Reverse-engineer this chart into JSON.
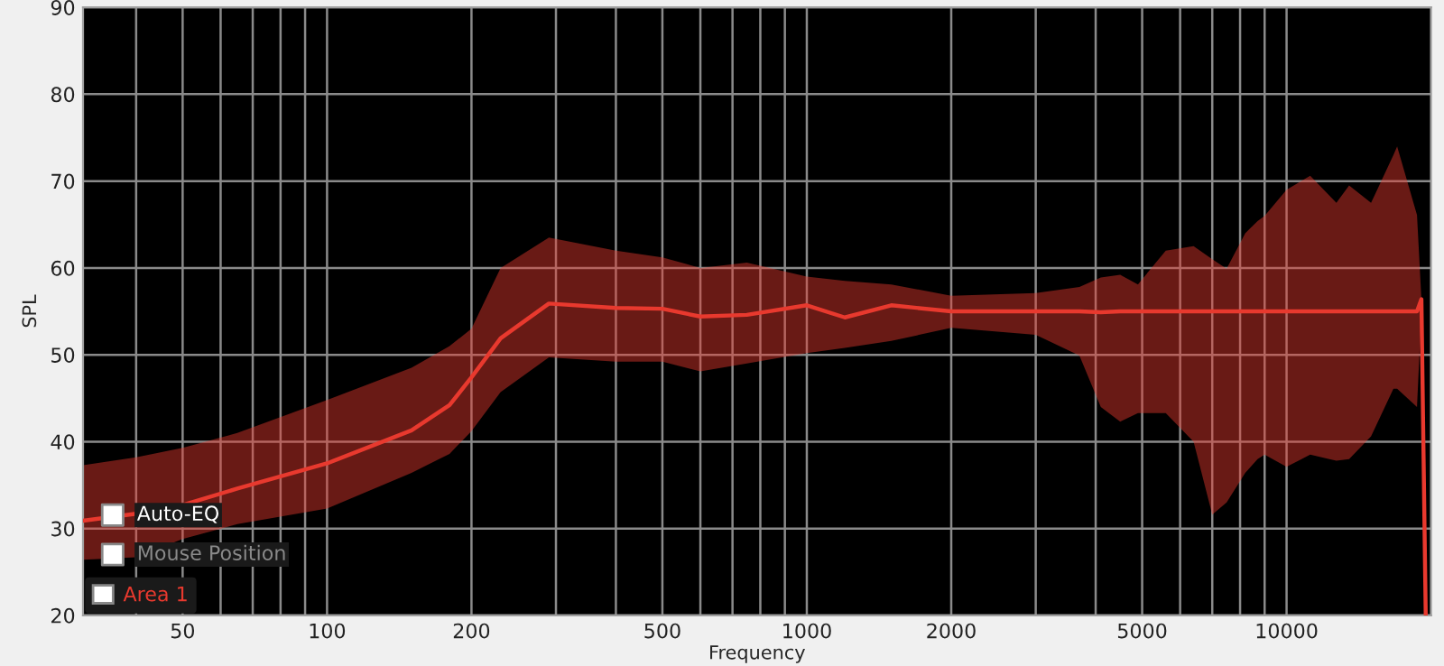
{
  "chart_data": {
    "type": "line",
    "xlabel": "Frequency",
    "ylabel": "SPL",
    "log": "x",
    "xlim": [
      31,
      20000
    ],
    "ylim": [
      20,
      90
    ],
    "xticks": [
      {
        "value": 40,
        "label": null
      },
      50,
      {
        "value": 60,
        "label": null
      },
      {
        "value": 70,
        "label": null
      },
      {
        "value": 80,
        "label": null
      },
      {
        "value": 90,
        "label": null
      },
      100,
      200,
      {
        "value": 300,
        "label": null
      },
      {
        "value": 400,
        "label": null
      },
      500,
      {
        "value": 600,
        "label": null
      },
      {
        "value": 700,
        "label": null
      },
      {
        "value": 800,
        "label": null
      },
      {
        "value": 900,
        "label": null
      },
      1000,
      2000,
      {
        "value": 3000,
        "label": null
      },
      {
        "value": 4000,
        "label": null
      },
      5000,
      {
        "value": 6000,
        "label": null
      },
      {
        "value": 7000,
        "label": null
      },
      {
        "value": 8000,
        "label": null
      },
      {
        "value": 9000,
        "label": null
      },
      10000
    ],
    "yticks": [
      20,
      30,
      40,
      50,
      60,
      70,
      80,
      90
    ],
    "grid": true,
    "legend": "bottom left",
    "line_style": "solid",
    "annotations": [
      "Auto-EQ",
      "Mouse Position"
    ],
    "series": [
      {
        "name": "Area 1",
        "color": "#e8392e",
        "x": [
          31,
          40,
          50,
          65,
          100,
          150,
          180,
          200,
          230,
          290,
          400,
          500,
          600,
          750,
          1000,
          1200,
          1500,
          2000,
          3000,
          3700,
          4100,
          4500,
          4900,
          5600,
          6400,
          7000,
          7500,
          8200,
          8700,
          9000,
          10000,
          11200,
          12700,
          13500,
          15000,
          16700,
          17000,
          18700,
          19100,
          19500
        ],
        "values": [
          30.9,
          31.7,
          32.7,
          34.6,
          37.5,
          41.3,
          44.2,
          47.4,
          51.9,
          55.9,
          55.4,
          55.3,
          54.4,
          54.6,
          55.7,
          54.3,
          55.7,
          55.0,
          55.0,
          55.0,
          54.9,
          55.0,
          55.0,
          55.0,
          55.0,
          55.0,
          55.0,
          55.0,
          55.0,
          55.0,
          55.0,
          55.0,
          55.0,
          55.0,
          55.0,
          55.0,
          55.0,
          55.0,
          56.4,
          20
        ],
        "upper": [
          37.3,
          38.2,
          39.3,
          41.0,
          44.8,
          48.5,
          51.0,
          53.0,
          60.0,
          63.5,
          62.0,
          61.2,
          60.0,
          60.6,
          59.0,
          58.5,
          58.1,
          56.8,
          57.1,
          57.8,
          58.9,
          59.2,
          58.1,
          62.0,
          62.5,
          61.0,
          59.9,
          64.0,
          65.4,
          66.0,
          69.0,
          70.6,
          67.5,
          69.5,
          67.5,
          73.0,
          74.0,
          66.1,
          56.4,
          null
        ],
        "lower": [
          26.4,
          26.7,
          28.8,
          30.5,
          32.3,
          36.4,
          38.6,
          41.2,
          45.7,
          49.7,
          49.2,
          49.2,
          48.1,
          49.0,
          50.2,
          50.8,
          51.6,
          53.1,
          52.3,
          49.9,
          44.0,
          42.3,
          43.3,
          43.3,
          40.0,
          31.6,
          33.0,
          36.4,
          38.0,
          38.5,
          37.1,
          38.5,
          37.8,
          38.0,
          40.6,
          46.1,
          46.1,
          44.0,
          55.0,
          null
        ]
      }
    ]
  }
}
